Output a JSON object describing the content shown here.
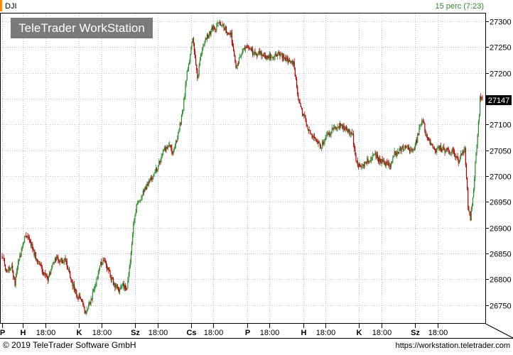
{
  "header": {
    "symbol": "DJI",
    "interval": "15 perc (7:23)"
  },
  "watermark": "TeleTrader WorkStation",
  "footer": {
    "copyright": "© 2019 TeleTrader Software GmbH",
    "url": "https://workstation.teletrader.com"
  },
  "colors": {
    "up": "#2e8b2e",
    "down": "#b30000",
    "grid": "#c8c8c8",
    "interval_text": "#2e8b2e",
    "watermark_bg": "#7a7a7a"
  },
  "chart_data": {
    "type": "candlestick",
    "symbol": "DJI",
    "interval": "15 perc",
    "grid": true,
    "y_axis_position": "right",
    "ylim": [
      26715,
      27315
    ],
    "y_ticks": [
      26750,
      26800,
      26850,
      26900,
      26950,
      27000,
      27050,
      27100,
      27150,
      27200,
      27250,
      27300
    ],
    "last_value": "27147",
    "x_ticks": [
      {
        "label": "P",
        "bold": true,
        "index": 0
      },
      {
        "label": "H",
        "bold": true,
        "index": 26
      },
      {
        "label": "18:00",
        "bold": false,
        "index": 54
      },
      {
        "label": "K",
        "bold": true,
        "index": 96
      },
      {
        "label": "18:00",
        "bold": false,
        "index": 124
      },
      {
        "label": "Sz",
        "bold": true,
        "index": 166
      },
      {
        "label": "18:00",
        "bold": false,
        "index": 194
      },
      {
        "label": "Cs",
        "bold": true,
        "index": 236
      },
      {
        "label": "18:00",
        "bold": false,
        "index": 264
      },
      {
        "label": "P",
        "bold": true,
        "index": 306
      },
      {
        "label": "18:00",
        "bold": false,
        "index": 334
      },
      {
        "label": "H",
        "bold": true,
        "index": 376
      },
      {
        "label": "18:00",
        "bold": false,
        "index": 404
      },
      {
        "label": "K",
        "bold": true,
        "index": 446
      },
      {
        "label": "18:00",
        "bold": false,
        "index": 474
      },
      {
        "label": "Sz",
        "bold": true,
        "index": 516
      },
      {
        "label": "18:00",
        "bold": false,
        "index": 544
      }
    ],
    "anchors": [
      [
        0,
        26845
      ],
      [
        6,
        26815
      ],
      [
        12,
        26825
      ],
      [
        16,
        26790
      ],
      [
        20,
        26830
      ],
      [
        28,
        26880
      ],
      [
        33,
        26885
      ],
      [
        40,
        26850
      ],
      [
        46,
        26830
      ],
      [
        52,
        26810
      ],
      [
        58,
        26800
      ],
      [
        62,
        26825
      ],
      [
        66,
        26840
      ],
      [
        72,
        26835
      ],
      [
        80,
        26835
      ],
      [
        86,
        26800
      ],
      [
        92,
        26775
      ],
      [
        98,
        26760
      ],
      [
        104,
        26740
      ],
      [
        110,
        26755
      ],
      [
        116,
        26785
      ],
      [
        122,
        26830
      ],
      [
        128,
        26838
      ],
      [
        134,
        26810
      ],
      [
        140,
        26790
      ],
      [
        146,
        26780
      ],
      [
        150,
        26790
      ],
      [
        156,
        26780
      ],
      [
        160,
        26835
      ],
      [
        164,
        26910
      ],
      [
        168,
        26940
      ],
      [
        172,
        26955
      ],
      [
        178,
        26975
      ],
      [
        184,
        26990
      ],
      [
        190,
        27005
      ],
      [
        196,
        27025
      ],
      [
        202,
        27050
      ],
      [
        208,
        27060
      ],
      [
        214,
        27045
      ],
      [
        220,
        27080
      ],
      [
        226,
        27130
      ],
      [
        230,
        27190
      ],
      [
        234,
        27225
      ],
      [
        238,
        27265
      ],
      [
        244,
        27190
      ],
      [
        250,
        27250
      ],
      [
        256,
        27270
      ],
      [
        262,
        27285
      ],
      [
        268,
        27290
      ],
      [
        274,
        27295
      ],
      [
        280,
        27285
      ],
      [
        286,
        27275
      ],
      [
        292,
        27210
      ],
      [
        298,
        27235
      ],
      [
        304,
        27255
      ],
      [
        310,
        27245
      ],
      [
        316,
        27235
      ],
      [
        322,
        27240
      ],
      [
        328,
        27230
      ],
      [
        334,
        27235
      ],
      [
        340,
        27230
      ],
      [
        346,
        27240
      ],
      [
        352,
        27230
      ],
      [
        358,
        27225
      ],
      [
        364,
        27220
      ],
      [
        370,
        27145
      ],
      [
        376,
        27120
      ],
      [
        382,
        27095
      ],
      [
        388,
        27075
      ],
      [
        392,
        27070
      ],
      [
        398,
        27055
      ],
      [
        404,
        27075
      ],
      [
        410,
        27085
      ],
      [
        416,
        27095
      ],
      [
        422,
        27100
      ],
      [
        428,
        27095
      ],
      [
        434,
        27085
      ],
      [
        438,
        27078
      ],
      [
        442,
        27030
      ],
      [
        448,
        27015
      ],
      [
        454,
        27025
      ],
      [
        460,
        27035
      ],
      [
        466,
        27040
      ],
      [
        472,
        27030
      ],
      [
        478,
        27025
      ],
      [
        484,
        27020
      ],
      [
        490,
        27045
      ],
      [
        496,
        27050
      ],
      [
        502,
        27055
      ],
      [
        508,
        27055
      ],
      [
        512,
        27045
      ],
      [
        518,
        27070
      ],
      [
        522,
        27095
      ],
      [
        526,
        27110
      ],
      [
        530,
        27075
      ],
      [
        536,
        27060
      ],
      [
        542,
        27050
      ],
      [
        548,
        27055
      ],
      [
        554,
        27050
      ],
      [
        560,
        27050
      ],
      [
        566,
        27040
      ],
      [
        570,
        27030
      ],
      [
        574,
        27040
      ],
      [
        578,
        27050
      ],
      [
        582,
        26945
      ],
      [
        585,
        26920
      ],
      [
        588,
        26960
      ],
      [
        592,
        27040
      ],
      [
        595,
        27100
      ],
      [
        597,
        27148
      ],
      [
        600,
        27147
      ]
    ],
    "n_candles": 601
  }
}
